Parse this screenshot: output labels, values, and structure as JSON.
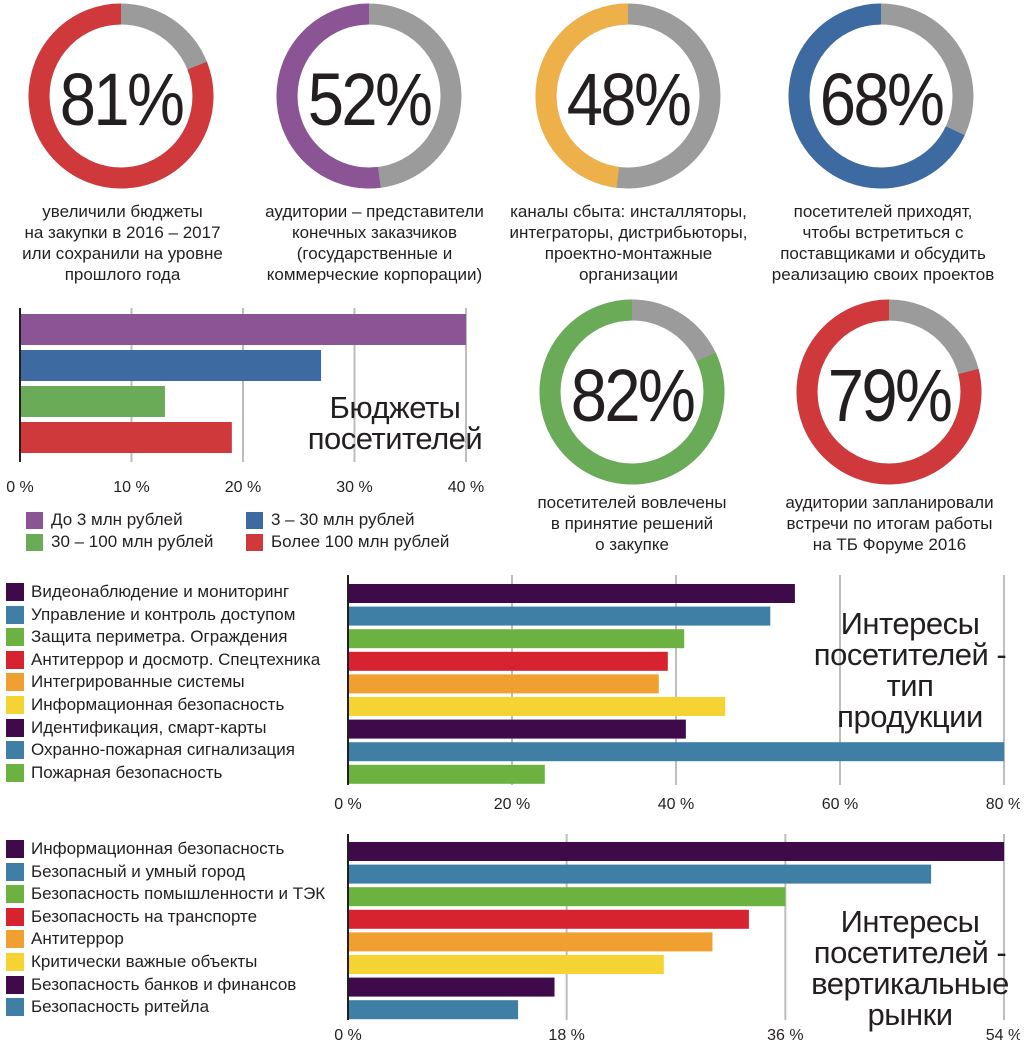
{
  "colors": {
    "red": "#d0393c",
    "purple": "#8b5595",
    "orange": "#eeb14a",
    "blue": "#3c6aa1",
    "green": "#6aab57",
    "gray": "#9b9b9b",
    "dark_purple": "#3f0a4a",
    "steel_blue": "#3f7fa6",
    "lime_green": "#6cb240",
    "bright_red": "#d7222f",
    "bright_orange": "#f0a030",
    "yellow": "#f4d332"
  },
  "chart_data": [
    {
      "type": "pie",
      "value": 81,
      "label": "81%",
      "color": "#d0393c",
      "caption": "увеличили бюджеты\nна закупки в 2016 – 2017\nили сохранили на уровне\nпрошлого года"
    },
    {
      "type": "pie",
      "value": 52,
      "label": "52%",
      "color": "#8b5595",
      "caption": "аудитории – представители\nконечных заказчиков\n(государственные и\nкоммерческие корпорации)"
    },
    {
      "type": "pie",
      "value": 48,
      "label": "48%",
      "color": "#eeb14a",
      "caption": "каналы сбыта: инсталляторы,\nинтеграторы, дистрибьюторы,\nпроектно-монтажные\nорганизации"
    },
    {
      "type": "pie",
      "value": 68,
      "label": "68%",
      "color": "#3c6aa1",
      "caption": "посетителей приходят,\nчтобы встретиться с\nпоставщиками и обсудить\nреализацию своих проектов"
    },
    {
      "type": "pie",
      "value": 82,
      "label": "82%",
      "color": "#6aab57",
      "caption": "посетителей вовлечены\nв принятие решений\nо закупке"
    },
    {
      "type": "pie",
      "value": 79,
      "label": "79%",
      "color": "#d0393c",
      "caption": "аудитории запланировали\nвстречи по итогам работы\nна ТБ Форуме 2016"
    },
    {
      "type": "bar",
      "title": "Бюджеты\nпосетителей",
      "xlim": [
        0,
        40
      ],
      "ticks": [
        0,
        10,
        20,
        30,
        40
      ],
      "tick_labels": [
        "0 %",
        "10 %",
        "20 %",
        "30 %",
        "40 %"
      ],
      "categories": [
        "До 3 млн рублей",
        "3 – 30 млн рублей",
        "30 – 100 млн рублей",
        "Более 100 млн рублей"
      ],
      "values": [
        41,
        27,
        13,
        19
      ],
      "colors": [
        "#8b5595",
        "#3c6aa1",
        "#6aab57",
        "#d0393c"
      ],
      "legend": [
        {
          "label": "До 3 млн рублей",
          "color": "#8b5595"
        },
        {
          "label": "3 – 30 млн рублей",
          "color": "#3c6aa1"
        },
        {
          "label": "30 – 100 млн рублей",
          "color": "#6aab57"
        },
        {
          "label": "Более 100 млн рублей",
          "color": "#d0393c"
        }
      ]
    },
    {
      "type": "bar",
      "title": "Интересы\nпосетителей -\nтип\nпродукции",
      "xlim": [
        0,
        80
      ],
      "ticks": [
        0,
        20,
        40,
        60,
        80
      ],
      "tick_labels": [
        "0 %",
        "20 %",
        "40 %",
        "60 %",
        "80 %"
      ],
      "categories": [
        "Видеонаблюдение и мониторинг",
        "Управление и контроль доступом",
        "Защита периметра. Ограждения",
        "Антитеррор и досмотр. Спецтехника",
        "Интегрированные системы",
        "Информационная безопасность",
        "Идентификация, смарт-карты",
        "Охранно-пожарная сигнализация",
        "Пожарная безопасность"
      ],
      "values": [
        54.5,
        51.5,
        41,
        39,
        37.9,
        46,
        41.2,
        80,
        24
      ],
      "colors": [
        "#3f0a4a",
        "#3f7fa6",
        "#6cb240",
        "#d7222f",
        "#f0a030",
        "#f4d332",
        "#3f0a4a",
        "#3f7fa6",
        "#6cb240"
      ]
    },
    {
      "type": "bar",
      "title": "Интересы\nпосетителей -\nвертикальные\nрынки",
      "xlim": [
        0,
        54
      ],
      "ticks": [
        0,
        18,
        36,
        54
      ],
      "tick_labels": [
        "0 %",
        "18 %",
        "36 %",
        "54 %"
      ],
      "categories": [
        "Информационная безопасность",
        "Безопасный и умный город",
        "Безопасность помышленности и ТЭК",
        "Безопасность на транспорте",
        "Антитеррор",
        "Критически важные объекты",
        "Безопасность банков и финансов",
        "Безопасность ритейла"
      ],
      "values": [
        54,
        48,
        36,
        33,
        30,
        26,
        17,
        14
      ],
      "colors": [
        "#3f0a4a",
        "#3f7fa6",
        "#6cb240",
        "#d7222f",
        "#f0a030",
        "#f4d332",
        "#3f0a4a",
        "#3f7fa6"
      ]
    }
  ]
}
